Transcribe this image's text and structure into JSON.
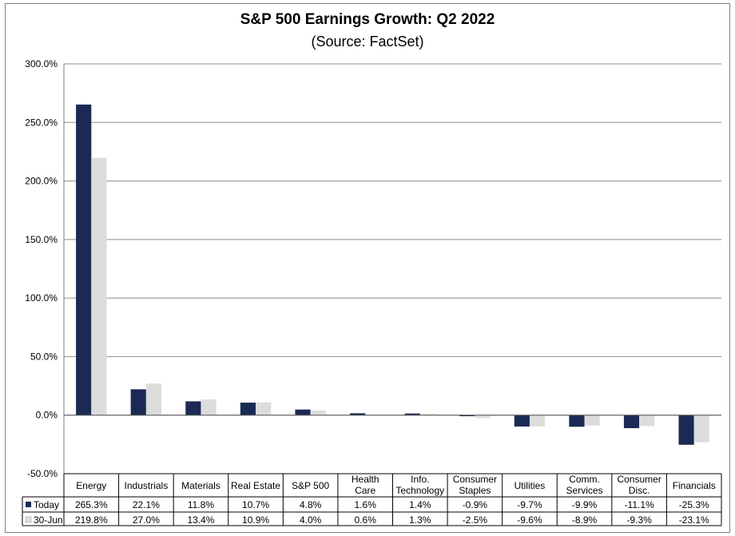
{
  "chart_data": {
    "type": "bar",
    "title": "S&P 500 Earnings Growth:  Q2 2022",
    "subtitle": "(Source: FactSet)",
    "categories": [
      [
        "Energy"
      ],
      [
        "Industrials"
      ],
      [
        "Materials"
      ],
      [
        "Real Estate"
      ],
      [
        "S&P 500"
      ],
      [
        "Health",
        "Care"
      ],
      [
        "Info.",
        "Technology"
      ],
      [
        "Consumer",
        "Staples"
      ],
      [
        "Utilities"
      ],
      [
        "Comm.",
        "Services"
      ],
      [
        "Consumer",
        "Disc."
      ],
      [
        "Financials"
      ]
    ],
    "series": [
      {
        "name": "Today",
        "color": "#1b2a55",
        "values": [
          265.3,
          22.1,
          11.8,
          10.7,
          4.8,
          1.6,
          1.4,
          -0.9,
          -9.7,
          -9.9,
          -11.1,
          -25.3
        ],
        "labels": [
          "265.3%",
          "22.1%",
          "11.8%",
          "10.7%",
          "4.8%",
          "1.6%",
          "1.4%",
          "-0.9%",
          "-9.7%",
          "-9.9%",
          "-11.1%",
          "-25.3%"
        ]
      },
      {
        "name": "30-Jun",
        "color": "#dcdcdc",
        "values": [
          219.8,
          27.0,
          13.4,
          10.9,
          4.0,
          0.6,
          1.3,
          -2.5,
          -9.6,
          -8.9,
          -9.3,
          -23.1
        ],
        "labels": [
          "219.8%",
          "27.0%",
          "13.4%",
          "10.9%",
          "4.0%",
          "0.6%",
          "1.3%",
          "-2.5%",
          "-9.6%",
          "-8.9%",
          "-9.3%",
          "-23.1%"
        ]
      }
    ],
    "ylim": [
      -50,
      300
    ],
    "yticks": [
      300,
      250,
      200,
      150,
      100,
      50,
      0,
      -50
    ],
    "ytick_labels": [
      "300.0%",
      "250.0%",
      "200.0%",
      "150.0%",
      "100.0%",
      "50.0%",
      "0.0%",
      "-50.0%"
    ],
    "grid": true,
    "legend": "data-table"
  }
}
